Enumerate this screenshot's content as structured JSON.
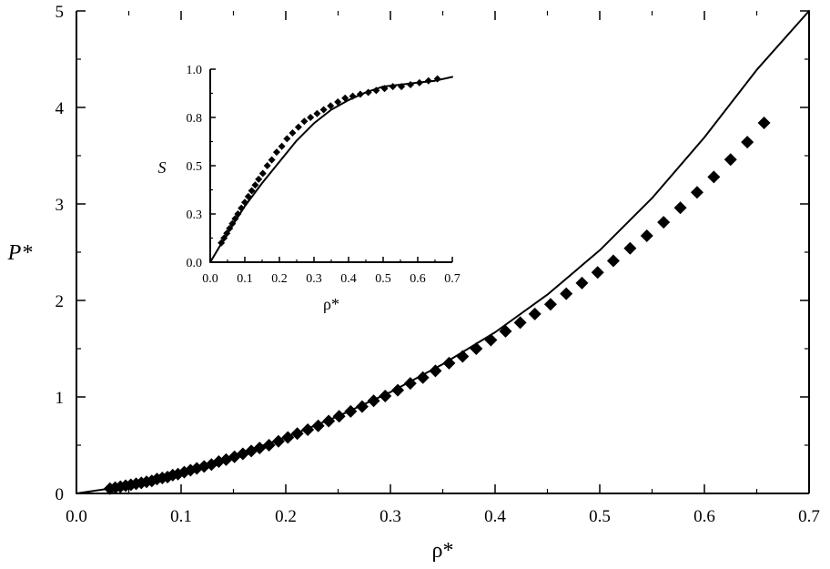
{
  "chart_data": [
    {
      "type": "scatter",
      "role": "main",
      "title": "",
      "xlabel": "ρ*",
      "ylabel": "P*",
      "xlim": [
        0.0,
        0.7
      ],
      "ylim": [
        0,
        5
      ],
      "grid": false,
      "x_ticks": [
        "0.0",
        "0.1",
        "0.2",
        "0.3",
        "0.4",
        "0.5",
        "0.6",
        "0.7"
      ],
      "y_ticks": [
        "0",
        "1",
        "2",
        "3",
        "4",
        "5"
      ],
      "series": [
        {
          "kind": "markers",
          "marker": "diamond",
          "color": "#000000",
          "x": [
            0.032,
            0.037,
            0.042,
            0.047,
            0.052,
            0.057,
            0.062,
            0.067,
            0.072,
            0.077,
            0.082,
            0.087,
            0.092,
            0.097,
            0.103,
            0.109,
            0.115,
            0.122,
            0.129,
            0.136,
            0.143,
            0.151,
            0.159,
            0.167,
            0.175,
            0.184,
            0.193,
            0.202,
            0.211,
            0.221,
            0.231,
            0.241,
            0.251,
            0.262,
            0.273,
            0.284,
            0.295,
            0.307,
            0.319,
            0.331,
            0.343,
            0.356,
            0.369,
            0.382,
            0.396,
            0.41,
            0.424,
            0.438,
            0.453,
            0.468,
            0.483,
            0.498,
            0.513,
            0.529,
            0.545,
            0.561,
            0.577,
            0.593,
            0.609,
            0.625,
            0.641,
            0.657
          ],
          "y": [
            0.05,
            0.06,
            0.07,
            0.08,
            0.09,
            0.1,
            0.11,
            0.12,
            0.13,
            0.15,
            0.16,
            0.17,
            0.19,
            0.2,
            0.22,
            0.24,
            0.26,
            0.28,
            0.3,
            0.33,
            0.35,
            0.38,
            0.41,
            0.44,
            0.47,
            0.5,
            0.54,
            0.58,
            0.62,
            0.66,
            0.7,
            0.75,
            0.8,
            0.85,
            0.9,
            0.96,
            1.01,
            1.07,
            1.14,
            1.2,
            1.27,
            1.35,
            1.42,
            1.5,
            1.59,
            1.68,
            1.77,
            1.86,
            1.96,
            2.07,
            2.18,
            2.29,
            2.41,
            2.54,
            2.67,
            2.81,
            2.96,
            3.12,
            3.28,
            3.46,
            3.64,
            3.84
          ]
        },
        {
          "kind": "line",
          "color": "#000000",
          "x": [
            0.0,
            0.05,
            0.1,
            0.15,
            0.2,
            0.25,
            0.3,
            0.35,
            0.4,
            0.45,
            0.5,
            0.55,
            0.6,
            0.65,
            0.7
          ],
          "y": [
            0.0,
            0.08,
            0.22,
            0.39,
            0.58,
            0.8,
            1.05,
            1.34,
            1.67,
            2.06,
            2.52,
            3.06,
            3.69,
            4.39,
            5.0
          ]
        }
      ]
    },
    {
      "type": "scatter",
      "role": "inset",
      "title": "",
      "xlabel": "ρ*",
      "ylabel": "S",
      "xlim": [
        0.0,
        0.7
      ],
      "ylim": [
        0.0,
        1.0
      ],
      "grid": false,
      "x_ticks": [
        "0.0",
        "0.1",
        "0.2",
        "0.3",
        "0.4",
        "0.5",
        "0.6",
        "0.7"
      ],
      "y_ticks": [
        "0.0",
        "0.3",
        "0.5",
        "0.8",
        "1.0"
      ],
      "series": [
        {
          "kind": "markers",
          "marker": "diamond",
          "color": "#000000",
          "x": [
            0.032,
            0.04,
            0.048,
            0.056,
            0.064,
            0.072,
            0.08,
            0.09,
            0.1,
            0.11,
            0.12,
            0.13,
            0.14,
            0.152,
            0.165,
            0.178,
            0.192,
            0.207,
            0.222,
            0.238,
            0.255,
            0.272,
            0.29,
            0.309,
            0.328,
            0.348,
            0.369,
            0.39,
            0.412,
            0.434,
            0.457,
            0.48,
            0.504,
            0.528,
            0.553,
            0.579,
            0.605,
            0.631,
            0.657
          ],
          "y": [
            0.1,
            0.125,
            0.15,
            0.175,
            0.2,
            0.225,
            0.25,
            0.28,
            0.31,
            0.34,
            0.37,
            0.4,
            0.43,
            0.46,
            0.5,
            0.53,
            0.57,
            0.6,
            0.64,
            0.67,
            0.7,
            0.73,
            0.75,
            0.77,
            0.79,
            0.81,
            0.83,
            0.85,
            0.86,
            0.87,
            0.88,
            0.89,
            0.9,
            0.91,
            0.91,
            0.92,
            0.93,
            0.94,
            0.95
          ]
        },
        {
          "kind": "line",
          "color": "#000000",
          "x": [
            0.0,
            0.05,
            0.1,
            0.15,
            0.2,
            0.25,
            0.3,
            0.35,
            0.4,
            0.45,
            0.5,
            0.55,
            0.6,
            0.65,
            0.7
          ],
          "y": [
            0.0,
            0.15,
            0.29,
            0.41,
            0.52,
            0.63,
            0.72,
            0.79,
            0.84,
            0.88,
            0.91,
            0.92,
            0.93,
            0.94,
            0.96
          ]
        }
      ]
    }
  ]
}
